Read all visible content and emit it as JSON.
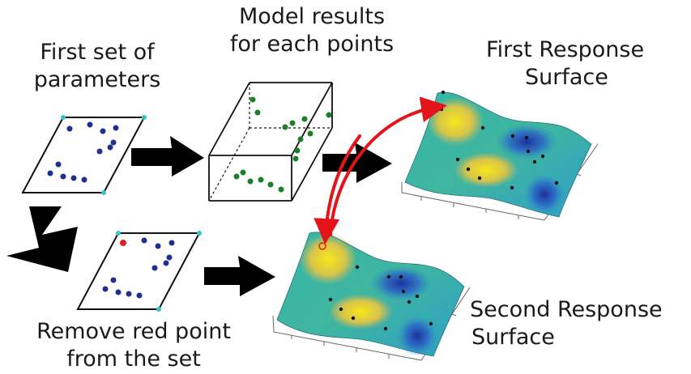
{
  "labels": {
    "first_set": [
      "First set of",
      "parameters"
    ],
    "model_results": [
      "Model results",
      "for each points"
    ],
    "first_surface": [
      "First Response",
      "Surface"
    ],
    "remove_red": [
      "Remove red point",
      "from the set"
    ],
    "second_surface": [
      "Second Response",
      "Surface"
    ]
  },
  "colors": {
    "parameter_point": "#1f2f8c",
    "corner_point": "#33c5c8",
    "model_point": "#1b7f2a",
    "removed_point": "#e0201c",
    "flow_arrow": "#000000",
    "link_arrow": "#e5141b"
  }
}
